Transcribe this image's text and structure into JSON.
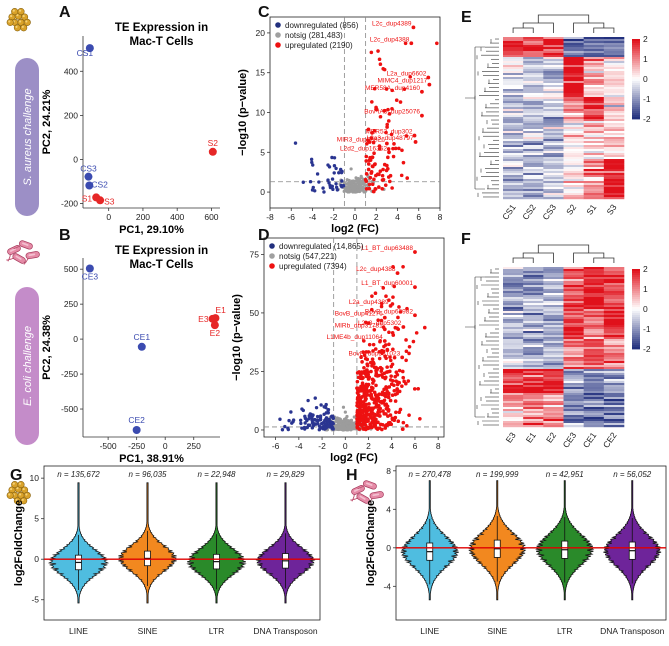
{
  "panels": {
    "A": {
      "letter": "A",
      "title_line1": "TE Expression in",
      "title_line2": "Mac-T Cells",
      "side_label": "S. aureus challenge",
      "chart_data": {
        "type": "scatter",
        "xlabel": "PC1, 29.10%",
        "ylabel": "PC2, 24.21%",
        "xlim": [
          -150,
          650
        ],
        "ylim": [
          -220,
          560
        ],
        "xticks": [
          0,
          200,
          400,
          600
        ],
        "yticks": [
          -200,
          0,
          200,
          400
        ],
        "points": [
          {
            "label": "CS1",
            "x": -110,
            "y": 505,
            "group": "control"
          },
          {
            "label": "CS3",
            "x": -118,
            "y": -78,
            "group": "control"
          },
          {
            "label": "CS2",
            "x": -113,
            "y": -118,
            "group": "control"
          },
          {
            "label": "S1",
            "x": -73,
            "y": -172,
            "group": "challenge"
          },
          {
            "label": "S3",
            "x": -50,
            "y": -185,
            "group": "challenge"
          },
          {
            "label": "S2",
            "x": 608,
            "y": 35,
            "group": "challenge"
          }
        ],
        "colors": {
          "control": "#3b4bb0",
          "challenge": "#e62727"
        }
      }
    },
    "B": {
      "letter": "B",
      "title_line1": "TE Expression in",
      "title_line2": "Mac-T Cells",
      "side_label": "E. coli challenge",
      "chart_data": {
        "type": "scatter",
        "xlabel": "PC1, 38.91%",
        "ylabel": "PC2, 24.38%",
        "xlim": [
          -720,
          480
        ],
        "ylim": [
          -700,
          580
        ],
        "xticks": [
          -500,
          -250,
          0,
          250
        ],
        "yticks": [
          -500,
          -250,
          0,
          250,
          500
        ],
        "points": [
          {
            "label": "CE3",
            "x": -660,
            "y": 505,
            "group": "control"
          },
          {
            "label": "CE1",
            "x": -205,
            "y": -55,
            "group": "control"
          },
          {
            "label": "CE2",
            "x": -250,
            "y": -650,
            "group": "control"
          },
          {
            "label": "E3",
            "x": 415,
            "y": 145,
            "group": "challenge"
          },
          {
            "label": "E1",
            "x": 440,
            "y": 150,
            "group": "challenge"
          },
          {
            "label": "E2",
            "x": 435,
            "y": 100,
            "group": "challenge"
          }
        ],
        "colors": {
          "control": "#3b4bb0",
          "challenge": "#e62727"
        }
      }
    },
    "C": {
      "letter": "C",
      "chart_data": {
        "type": "scatter",
        "xlabel": "log2 (FC)",
        "ylabel": "−log10 (p−value)",
        "xlim": [
          -8,
          8
        ],
        "ylim": [
          -2,
          22
        ],
        "xticks": [
          -8,
          -6,
          -4,
          -2,
          0,
          2,
          4,
          6,
          8
        ],
        "yticks": [
          0,
          5,
          10,
          15,
          20
        ],
        "thresholds": {
          "x": [
            -1,
            1
          ],
          "y": 1.3
        },
        "legend": [
          {
            "label": "downregulated (856)",
            "color": "#22307e"
          },
          {
            "label": "notsig (281,483)",
            "color": "#a0a0a0"
          },
          {
            "label": "upregulated (2190)",
            "color": "#ee1111"
          }
        ],
        "annotations": [
          {
            "label": "L2c_dup4389",
            "x": 5.5,
            "y": 20.7
          },
          {
            "label": "L2c_dup4388",
            "x": 5.3,
            "y": 18.7
          },
          {
            "label": "L2a_dup6602",
            "x": 6.9,
            "y": 14.4
          },
          {
            "label": "MIMC4_dup1217",
            "x": 7.0,
            "y": 13.5
          },
          {
            "label": "MER58A_dup4160",
            "x": 6.3,
            "y": 12.6
          },
          {
            "label": "Bov-tA3_dup25076",
            "x": 6.3,
            "y": 9.6
          },
          {
            "label": "MER53_dup302",
            "x": 5.6,
            "y": 7.1
          },
          {
            "label": "MIR3_dup50826",
            "x": 3.0,
            "y": 6.1
          },
          {
            "label": "L2a3_dup48797",
            "x": 5.7,
            "y": 6.3
          },
          {
            "label": "L2d2_dup16352",
            "x": 3.2,
            "y": 5.0
          }
        ]
      }
    },
    "D": {
      "letter": "D",
      "chart_data": {
        "type": "scatter",
        "xlabel": "log2 (FC)",
        "ylabel": "−log10 (p−value)",
        "xlim": [
          -7,
          8.5
        ],
        "ylim": [
          -3,
          82
        ],
        "xticks": [
          -6,
          -4,
          -2,
          0,
          2,
          4,
          6,
          8
        ],
        "yticks": [
          0,
          25,
          50,
          75
        ],
        "thresholds": {
          "x": [
            -1,
            1
          ],
          "y": 1.3
        },
        "legend": [
          {
            "label": "downregulated (14,865)",
            "color": "#22307e"
          },
          {
            "label": "notsig (547,221)",
            "color": "#a0a0a0"
          },
          {
            "label": "upregulated (7394)",
            "color": "#ee1111"
          }
        ],
        "annotations": [
          {
            "label": "L1_BT_dup63488",
            "x": 6.0,
            "y": 76
          },
          {
            "label": "L2c_dup4388",
            "x": 4.5,
            "y": 67
          },
          {
            "label": "L1_BT_dup60001",
            "x": 6.0,
            "y": 61
          },
          {
            "label": "L2a_dup4389",
            "x": 3.9,
            "y": 53
          },
          {
            "label": "BovB_dup63982",
            "x": 6.0,
            "y": 49
          },
          {
            "label": "BovB_dup41276",
            "x": 3.4,
            "y": 48
          },
          {
            "label": "MIRb_dup31781",
            "x": 3.4,
            "y": 43
          },
          {
            "label": "L2a3_dup5302",
            "x": 5.0,
            "y": 44
          },
          {
            "label": "L1ME4b_dup11064",
            "x": 3.4,
            "y": 38
          },
          {
            "label": "BovB_dup331023",
            "x": 4.9,
            "y": 31
          }
        ]
      }
    },
    "E": {
      "letter": "E",
      "chart_data": {
        "type": "heatmap",
        "columns": [
          "CS1",
          "CS2",
          "CS3",
          "S2",
          "S1",
          "S3"
        ],
        "colorbar_ticks": [
          2,
          1,
          0,
          -1,
          -2
        ],
        "color_scale": {
          "low": "#22307e",
          "mid": "#ffffff",
          "high": "#e0111b"
        }
      }
    },
    "F": {
      "letter": "F",
      "chart_data": {
        "type": "heatmap",
        "columns": [
          "E3",
          "E1",
          "E2",
          "CE3",
          "CE1",
          "CE2"
        ],
        "colorbar_ticks": [
          2,
          1,
          0,
          -1,
          -2
        ],
        "color_scale": {
          "low": "#22307e",
          "mid": "#ffffff",
          "high": "#e0111b"
        }
      }
    },
    "G": {
      "letter": "G",
      "chart_data": {
        "type": "violin",
        "ylabel": "log2FoldChange",
        "ylim": [
          -7.5,
          11.5
        ],
        "yticks": [
          -5,
          0,
          5,
          10
        ],
        "reference_line": 0,
        "categories": [
          "LINE",
          "SINE",
          "LTR",
          "DNA Transposon"
        ],
        "counts": [
          "n = 135,672",
          "n = 96,035",
          "n = 22,948",
          "n = 29,829"
        ],
        "colors": [
          "#4fbde0",
          "#f2881f",
          "#2a8a2a",
          "#6e249a"
        ],
        "medians": [
          -0.4,
          0.1,
          -0.3,
          -0.2
        ]
      }
    },
    "H": {
      "letter": "H",
      "chart_data": {
        "type": "violin",
        "ylabel": "log2FoldChange",
        "ylim": [
          -7.5,
          8.5
        ],
        "yticks": [
          -4,
          0,
          4,
          8
        ],
        "reference_line": 0,
        "categories": [
          "LINE",
          "SINE",
          "LTR",
          "DNA Transposon"
        ],
        "counts": [
          "n = 270,478",
          "n = 199,999",
          "n = 42,951",
          "n = 56,052"
        ],
        "colors": [
          "#4fbde0",
          "#f2881f",
          "#2a8a2a",
          "#6e249a"
        ],
        "medians": [
          -0.4,
          -0.1,
          -0.2,
          -0.3
        ]
      }
    }
  }
}
